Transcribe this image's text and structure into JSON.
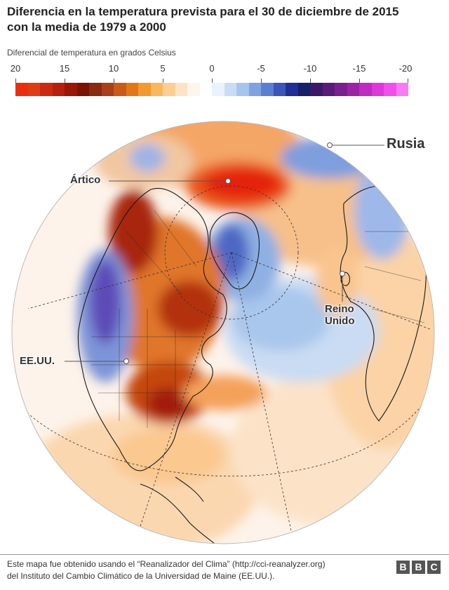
{
  "title_line1": "Diferencia en la temperatura prevista para el 30 de diciembre de 2015",
  "title_line2": "con la media de 1979 a 2000",
  "legend": {
    "caption": "Diferencial de temperatura en grados Celsius",
    "ticks": [
      "20",
      "15",
      "10",
      "5",
      "0",
      "-5",
      "-10",
      "-15",
      "-20"
    ],
    "colors": [
      "#e8300f",
      "#e03c14",
      "#cc2a10",
      "#b4200c",
      "#9a1608",
      "#7c1206",
      "#8a2a10",
      "#a8401a",
      "#c85a1a",
      "#e07818",
      "#f29a30",
      "#f8b860",
      "#fbcf93",
      "#fde3c4",
      "#fff4ea",
      "#ffffff",
      "#eaf2fc",
      "#c8ddf5",
      "#a5c5ee",
      "#7ea3e0",
      "#5a7fd0",
      "#3a56b8",
      "#1e2f96",
      "#151f6a",
      "#3a1768",
      "#5a1a7a",
      "#7a208e",
      "#9a24a6",
      "#be2cc0",
      "#dd38d8",
      "#f050ea",
      "#fa7af5"
    ],
    "max": 20,
    "min": -20,
    "unit": "°C"
  },
  "map": {
    "ocean_color": "#ffffff",
    "coast_color": "#1a1a1a",
    "labels": {
      "russia": "Rusia",
      "arctic": "Ártico",
      "uk_line1": "Reino",
      "uk_line2": "Unido",
      "usa": "EE.UU."
    }
  },
  "footer": {
    "line1": "Este mapa fue obtenido usando el “Reanalizador del Clima” (http://cci-reanalyzer.org)",
    "line2": "del Instituto del Cambio Climático de la Universidad de Maine (EE.UU.)."
  },
  "logo": [
    "B",
    "B",
    "C"
  ]
}
